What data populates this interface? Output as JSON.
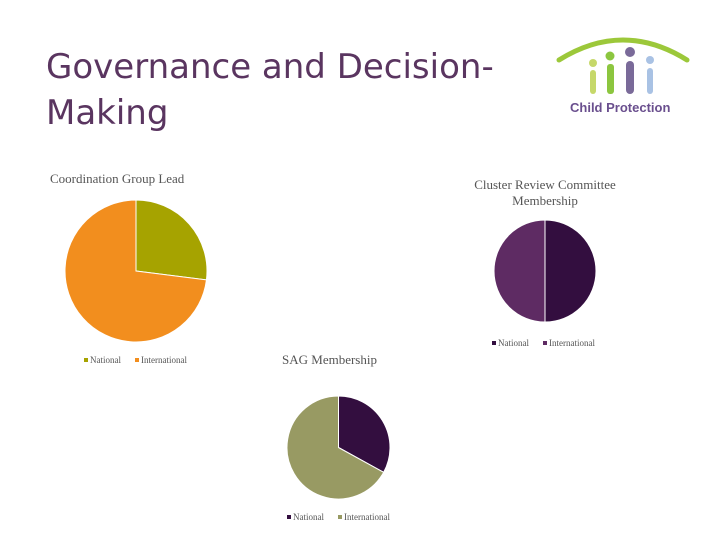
{
  "slide": {
    "title": "Governance and Decision-Making"
  },
  "logo": {
    "text": "Child Protection"
  },
  "chart_data": [
    {
      "type": "pie",
      "title": "Coordination Group Lead",
      "categories": [
        "National",
        "International"
      ],
      "values": [
        27,
        73
      ],
      "colors": [
        "#a6a300",
        "#f28e1e"
      ]
    },
    {
      "type": "pie",
      "title": "Cluster Review Committee Membership",
      "categories": [
        "National",
        "International"
      ],
      "values": [
        50,
        50
      ],
      "colors": [
        "#330e3f",
        "#5e2b63"
      ]
    },
    {
      "type": "pie",
      "title": "SAG Membership",
      "categories": [
        "National",
        "International"
      ],
      "values": [
        33,
        67
      ],
      "colors": [
        "#330e3f",
        "#989a63"
      ]
    }
  ]
}
